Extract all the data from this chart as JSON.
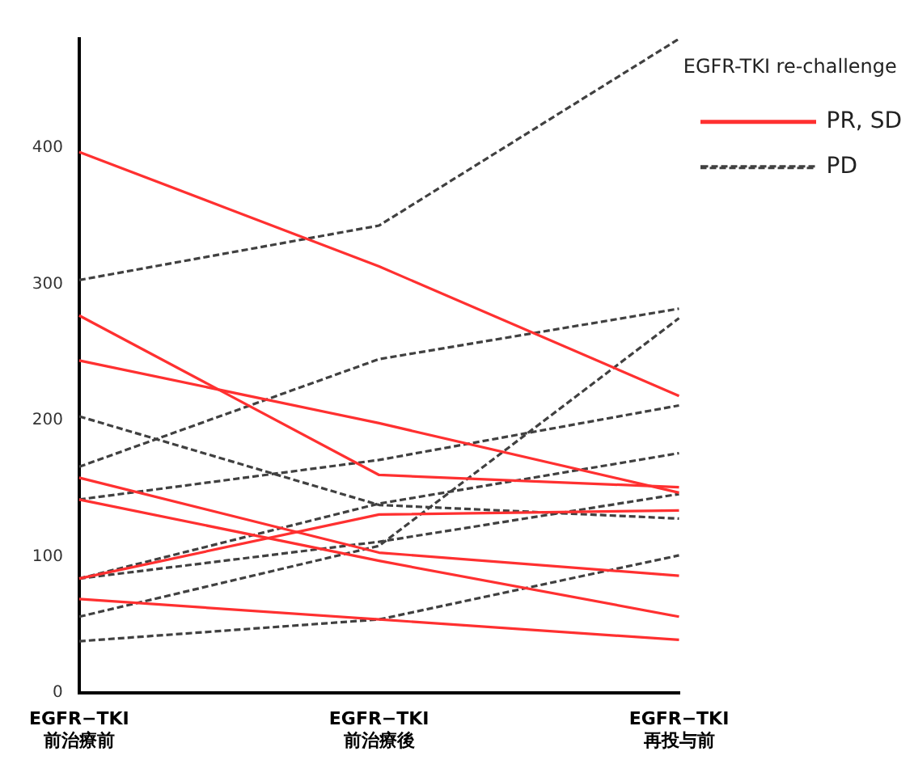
{
  "chart_data": {
    "type": "line",
    "legend_title": "EGFR-TKI re-challenge",
    "legend": "top right",
    "grid": false,
    "marker": "none",
    "categories": [
      "EGFR−TKI\n前治療前",
      "EGFR−TKI\n前治療後",
      "EGFR−TKI\n再投与前"
    ],
    "ylim": [
      0,
      480
    ],
    "yticks": [
      0,
      100,
      200,
      300,
      400
    ],
    "series": [
      {
        "name": "PR, SD",
        "color": "#ff3030",
        "line_style": "solid",
        "values": [
          397,
          313,
          218
        ]
      },
      {
        "name": "PD",
        "color": "#404040",
        "line_style": "dashed",
        "values": [
          303,
          343,
          480
        ]
      },
      {
        "color": "#ff3030",
        "line_style": "solid",
        "values": [
          277,
          160,
          151
        ]
      },
      {
        "color": "#ff3030",
        "line_style": "solid",
        "values": [
          244,
          198,
          147
        ]
      },
      {
        "color": "#ff3030",
        "line_style": "solid",
        "values": [
          158,
          103,
          86
        ]
      },
      {
        "color": "#ff3030",
        "line_style": "solid",
        "values": [
          142,
          97,
          56
        ]
      },
      {
        "color": "#ff3030",
        "line_style": "solid",
        "values": [
          84,
          131,
          134
        ]
      },
      {
        "color": "#ff3030",
        "line_style": "solid",
        "values": [
          69,
          54,
          39
        ]
      },
      {
        "color": "#404040",
        "line_style": "dashed",
        "values": [
          166,
          245,
          282
        ]
      },
      {
        "color": "#404040",
        "line_style": "dashed",
        "values": [
          203,
          138,
          128
        ]
      },
      {
        "color": "#404040",
        "line_style": "dashed",
        "values": [
          142,
          171,
          211
        ]
      },
      {
        "color": "#404040",
        "line_style": "dashed",
        "values": [
          84,
          139,
          176
        ]
      },
      {
        "color": "#404040",
        "line_style": "dashed",
        "values": [
          84,
          111,
          146
        ]
      },
      {
        "color": "#404040",
        "line_style": "dashed",
        "values": [
          56,
          108,
          275
        ]
      },
      {
        "color": "#404040",
        "line_style": "dashed",
        "values": [
          38,
          54,
          101
        ]
      }
    ]
  }
}
